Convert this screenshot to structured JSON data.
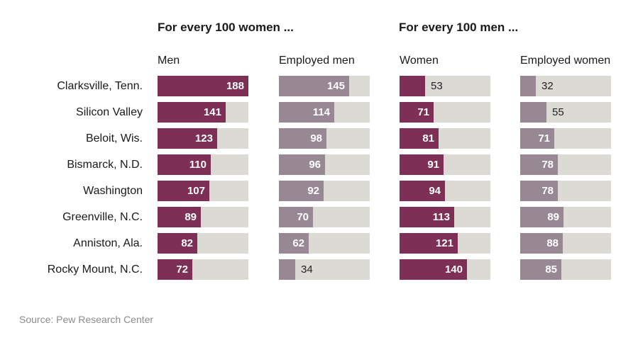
{
  "colors": {
    "background_bar": "#dcdad5",
    "men_bar": "#7e2f55",
    "employed_men_bar": "#978893",
    "women_bar": "#7e2f55",
    "employed_women_bar": "#978893"
  },
  "sections": [
    {
      "title": "For every 100 women ..."
    },
    {
      "title": "For every 100 men ..."
    }
  ],
  "chart_data": {
    "type": "bar",
    "orientation": "horizontal",
    "categories": [
      "Clarksville, Tenn.",
      "Silicon Valley",
      "Beloit, Wis.",
      "Bismarck, N.D.",
      "Washington",
      "Greenville, N.C.",
      "Anniston, Ala.",
      "Rocky Mount, N.C."
    ],
    "xlim": [
      0,
      188
    ],
    "series": [
      {
        "name": "Men",
        "section": 0,
        "values": [
          188,
          141,
          123,
          110,
          107,
          89,
          82,
          72
        ]
      },
      {
        "name": "Employed men",
        "section": 0,
        "values": [
          145,
          114,
          98,
          96,
          92,
          70,
          62,
          34
        ]
      },
      {
        "name": "Women",
        "section": 1,
        "values": [
          53,
          71,
          81,
          91,
          94,
          113,
          121,
          140
        ]
      },
      {
        "name": "Employed women",
        "section": 1,
        "values": [
          32,
          55,
          71,
          78,
          78,
          89,
          88,
          85
        ]
      }
    ]
  },
  "source": "Source: Pew Research Center"
}
